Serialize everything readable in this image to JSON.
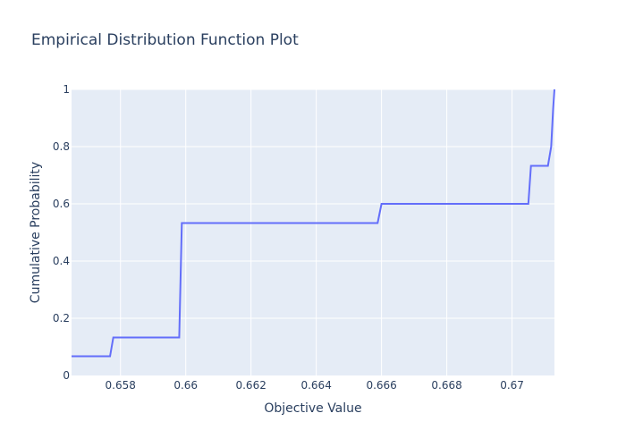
{
  "chart_data": {
    "type": "line",
    "title": "Empirical Distribution Function Plot",
    "xlabel": "Objective Value",
    "ylabel": "Cumulative Probability",
    "xlim": [
      0.6565,
      0.6713
    ],
    "ylim": [
      0,
      1
    ],
    "x_ticks": [
      0.658,
      0.66,
      0.662,
      0.664,
      0.666,
      0.668,
      0.67
    ],
    "x_tick_labels": [
      "0.658",
      "0.66",
      "0.662",
      "0.664",
      "0.666",
      "0.668",
      "0.67"
    ],
    "y_ticks": [
      0,
      0.2,
      0.4,
      0.6,
      0.8,
      1
    ],
    "y_tick_labels": [
      "0",
      "0.2",
      "0.4",
      "0.6",
      "0.8",
      "1"
    ],
    "grid": true,
    "colors": {
      "line": "#636efa",
      "plot_bg": "#e5ecf6",
      "grid": "#ffffff",
      "text": "#2a3f5f"
    },
    "series": [
      {
        "x": [
          0.6565,
          0.65768,
          0.65778,
          0.65788,
          0.65798,
          0.65808,
          0.65818,
          0.6583,
          0.65844,
          0.65858,
          0.6587,
          0.65882,
          0.6589,
          0.659,
          0.6591,
          0.65922,
          0.6593,
          0.65938,
          0.65948,
          0.65958,
          0.6597,
          0.6598,
          0.65988,
          0.66,
          0.66012,
          0.66025,
          0.66038,
          0.6605,
          0.66062,
          0.66075,
          0.66088,
          0.661,
          0.66112,
          0.66125,
          0.66138,
          0.6615,
          0.66162,
          0.66175,
          0.66188,
          0.662,
          0.66212,
          0.66225,
          0.66238,
          0.6625,
          0.66262,
          0.66275,
          0.66288,
          0.663,
          0.66312,
          0.66325,
          0.66338,
          0.6635,
          0.66362,
          0.66375,
          0.66388,
          0.664,
          0.66412,
          0.66425,
          0.66438,
          0.6645,
          0.66462,
          0.66475,
          0.66488,
          0.665,
          0.66512,
          0.66525,
          0.66538,
          0.6655,
          0.66562,
          0.66575,
          0.66588,
          0.666,
          0.66612,
          0.66625,
          0.66638,
          0.6665,
          0.66662,
          0.66675,
          0.66688,
          0.667,
          0.66712,
          0.66725,
          0.66738,
          0.6675,
          0.66762,
          0.66775,
          0.66788,
          0.668,
          0.66812,
          0.66825,
          0.66838,
          0.6685,
          0.66862,
          0.66875,
          0.66888,
          0.669,
          0.66912,
          0.66925,
          0.66938,
          0.6695,
          0.66962,
          0.66975,
          0.66988,
          0.67,
          0.67012,
          0.67025,
          0.67038,
          0.6705,
          0.67058,
          0.67066,
          0.67074,
          0.67082,
          0.6709,
          0.671,
          0.6711,
          0.6712,
          0.67126,
          0.6713
        ],
        "y": [
          0.067,
          0.067,
          0.133,
          0.133,
          0.133,
          0.133,
          0.133,
          0.133,
          0.133,
          0.133,
          0.133,
          0.133,
          0.133,
          0.133,
          0.133,
          0.133,
          0.133,
          0.133,
          0.133,
          0.133,
          0.133,
          0.133,
          0.533,
          0.533,
          0.533,
          0.533,
          0.533,
          0.533,
          0.533,
          0.533,
          0.533,
          0.533,
          0.533,
          0.533,
          0.533,
          0.533,
          0.533,
          0.533,
          0.533,
          0.533,
          0.533,
          0.533,
          0.533,
          0.533,
          0.533,
          0.533,
          0.533,
          0.533,
          0.533,
          0.533,
          0.533,
          0.533,
          0.533,
          0.533,
          0.533,
          0.533,
          0.533,
          0.533,
          0.533,
          0.533,
          0.533,
          0.533,
          0.533,
          0.533,
          0.533,
          0.533,
          0.533,
          0.533,
          0.533,
          0.533,
          0.533,
          0.6,
          0.6,
          0.6,
          0.6,
          0.6,
          0.6,
          0.6,
          0.6,
          0.6,
          0.6,
          0.6,
          0.6,
          0.6,
          0.6,
          0.6,
          0.6,
          0.6,
          0.6,
          0.6,
          0.6,
          0.6,
          0.6,
          0.6,
          0.6,
          0.6,
          0.6,
          0.6,
          0.6,
          0.6,
          0.6,
          0.6,
          0.6,
          0.6,
          0.6,
          0.6,
          0.6,
          0.6,
          0.733,
          0.733,
          0.733,
          0.733,
          0.733,
          0.733,
          0.733,
          0.8,
          0.933,
          1.0
        ]
      }
    ]
  }
}
